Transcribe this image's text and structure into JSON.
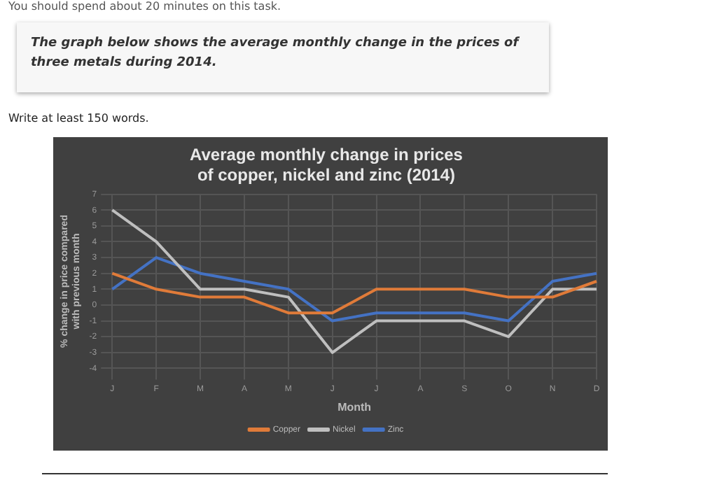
{
  "chart_data": {
    "type": "line",
    "title": "Average monthly change in prices of copper, nickel and zinc (2014)",
    "xlabel": "Month",
    "ylabel": "% change in price compared with previous month",
    "annotations": [
      "You should spend about 20 minutes on this task.",
      "The graph below shows the average monthly change in the prices of three metals during 2014.",
      "Write at least 150 words."
    ],
    "categories": [
      "J",
      "F",
      "M",
      "A",
      "M",
      "J",
      "J",
      "A",
      "S",
      "O",
      "N",
      "D"
    ],
    "series": [
      {
        "name": "Copper",
        "color": "#e07b39",
        "values": [
          2,
          1,
          0.5,
          0.5,
          -0.5,
          -0.5,
          1,
          1,
          1,
          0.5,
          0.5,
          1.5
        ]
      },
      {
        "name": "Nickel",
        "color": "#bfbfbf",
        "values": [
          6,
          4,
          1,
          1,
          0.5,
          -3,
          -1,
          -1,
          -1,
          -2,
          1,
          1
        ]
      },
      {
        "name": "Zinc",
        "color": "#4472c4",
        "values": [
          1,
          3,
          2,
          1.5,
          1,
          -1,
          -0.5,
          -0.5,
          -0.5,
          -1,
          1.5,
          2
        ]
      }
    ],
    "ylim": [
      -4,
      7
    ],
    "yticks": [
      -4,
      -3,
      -2,
      -1,
      0,
      1,
      2,
      3,
      4,
      5,
      6,
      7
    ],
    "grid": true,
    "legend": "bottom",
    "marker": "none",
    "line_style": "solid"
  }
}
